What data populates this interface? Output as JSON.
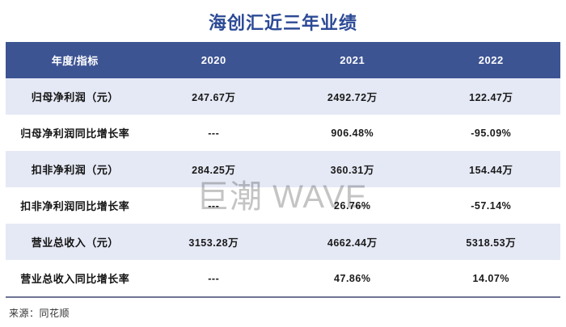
{
  "chart_data": {
    "type": "table",
    "title": "海创汇近三年业绩",
    "columns": [
      "年度/指标",
      "2020",
      "2021",
      "2022"
    ],
    "rows": [
      {
        "label": "归母净利润（元）",
        "values": [
          "247.67万",
          "2492.72万",
          "122.47万"
        ]
      },
      {
        "label": "归母净利润同比增长率",
        "values": [
          "---",
          "906.48%",
          "-95.09%"
        ]
      },
      {
        "label": "扣非净利润（元）",
        "values": [
          "284.25万",
          "360.31万",
          "154.44万"
        ]
      },
      {
        "label": "扣非净利润同比增长率",
        "values": [
          "---",
          "26.76%",
          "-57.14%"
        ]
      },
      {
        "label": "营业总收入（元）",
        "values": [
          "3153.28万",
          "4662.44万",
          "5318.53万"
        ]
      },
      {
        "label": "营业总收入同比增长率",
        "values": [
          "---",
          "47.86%",
          "14.07%"
        ]
      }
    ],
    "source": "来源：同花顺",
    "layout": {
      "header_position": "top",
      "zebra_striping": true
    }
  },
  "watermark": {
    "text": "巨潮 WAVE"
  },
  "colors": {
    "title": "#2c4a96",
    "header_bg": "#3d5493",
    "header_text": "#ffffff",
    "row_alt_bg": "#e5e9f5",
    "row_bg": "#ffffff",
    "body_text": "#1a1a1a",
    "bottom_border": "#6e7494",
    "watermark": "#c9c9c9",
    "source_text": "#333333"
  }
}
